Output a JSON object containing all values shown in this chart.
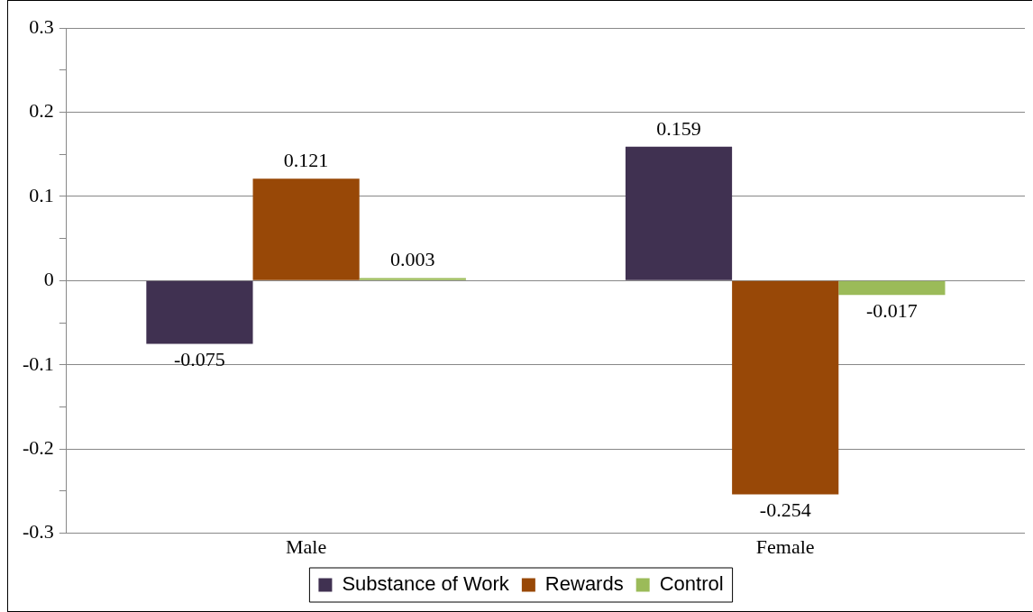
{
  "chart_data": {
    "type": "bar",
    "categories": [
      "Male",
      "Female"
    ],
    "series": [
      {
        "name": "Substance of Work",
        "color": "#403151",
        "values": [
          -0.075,
          0.159
        ]
      },
      {
        "name": "Rewards",
        "color": "#984807",
        "values": [
          0.121,
          -0.254
        ]
      },
      {
        "name": "Control",
        "color": "#9bbb59",
        "values": [
          0.003,
          -0.017
        ]
      }
    ],
    "ylim": [
      -0.3,
      0.3
    ],
    "yticks": [
      -0.3,
      {
        "value": -0.25,
        "label": null
      },
      -0.2,
      {
        "value": -0.15,
        "label": null
      },
      -0.1,
      {
        "value": -0.05,
        "label": null
      },
      0,
      {
        "value": 0.05,
        "label": null
      },
      0.1,
      {
        "value": 0.15,
        "label": null
      },
      0.2,
      {
        "value": 0.25,
        "label": null
      },
      0.3
    ],
    "grid": "y",
    "legend": "bottom",
    "data_labels": true
  }
}
